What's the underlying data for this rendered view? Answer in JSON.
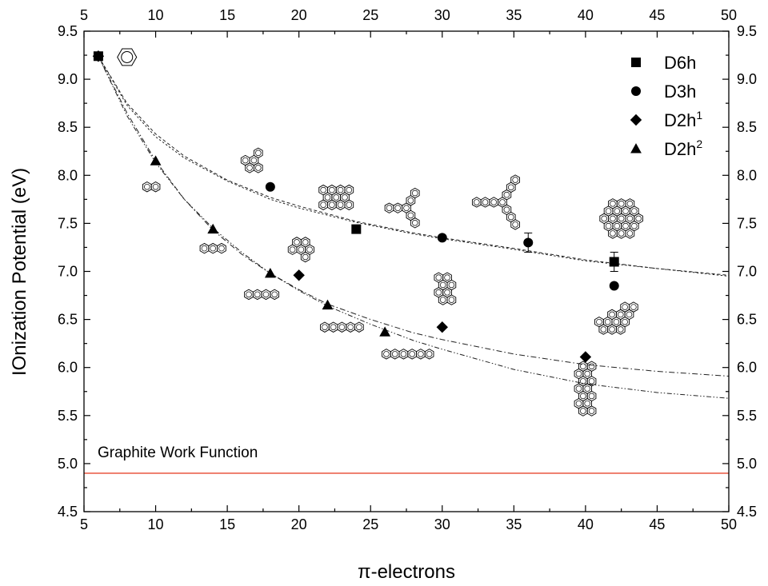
{
  "chart_data": {
    "type": "scatter",
    "xlabel": "π-electrons",
    "ylabel": "IOnization Potential (eV)",
    "xlim": [
      5,
      50
    ],
    "ylim": [
      4.5,
      9.5
    ],
    "x_ticks": [
      "5",
      "10",
      "15",
      "20",
      "25",
      "30",
      "35",
      "40",
      "45",
      "50"
    ],
    "y_ticks": [
      "4.5",
      "5.0",
      "5.5",
      "6.0",
      "6.5",
      "7.0",
      "7.5",
      "8.0",
      "8.5",
      "9.0",
      "9.5"
    ],
    "top_axis_ticks": [
      "5",
      "10",
      "15",
      "20",
      "25",
      "30",
      "35",
      "40",
      "45",
      "50"
    ],
    "right_axis_ticks": [
      "4.5",
      "5.0",
      "5.5",
      "6.0",
      "6.5",
      "7.0",
      "7.5",
      "8.0",
      "8.5",
      "9.0",
      "9.5"
    ],
    "legend_position": "top-right",
    "grid": false,
    "series": [
      {
        "name": "D6h",
        "marker": "square",
        "x": [
          6,
          24,
          42
        ],
        "y": [
          9.24,
          7.44,
          7.1
        ],
        "yerr": [
          0,
          0,
          0.1
        ]
      },
      {
        "name": "D3h",
        "marker": "circle",
        "x": [
          18,
          30,
          36,
          42
        ],
        "y": [
          7.88,
          7.35,
          7.3,
          6.85
        ],
        "yerr": [
          0,
          0,
          0.1,
          0
        ]
      },
      {
        "name": "D2h",
        "name_sup": "1",
        "marker": "diamond",
        "x": [
          6,
          20,
          30,
          40
        ],
        "y": [
          9.24,
          6.96,
          6.42,
          6.11
        ]
      },
      {
        "name": "D2h",
        "name_sup": "2",
        "marker": "triangle",
        "x": [
          10,
          14,
          18,
          22,
          26
        ],
        "y": [
          8.15,
          7.44,
          6.98,
          6.65,
          6.37
        ]
      }
    ],
    "fit_curves": [
      {
        "style": "dashed",
        "x": [
          6,
          8,
          10,
          12,
          15,
          18,
          20,
          24,
          28,
          30,
          35,
          40,
          45,
          50
        ],
        "y": [
          9.24,
          8.75,
          8.43,
          8.2,
          7.95,
          7.77,
          7.68,
          7.52,
          7.4,
          7.35,
          7.24,
          7.12,
          7.03,
          6.96
        ]
      },
      {
        "style": "short-dashed",
        "x": [
          6,
          8,
          10,
          12,
          15,
          18,
          20,
          24,
          28,
          30,
          35,
          40,
          45,
          50
        ],
        "y": [
          9.24,
          8.73,
          8.4,
          8.18,
          7.94,
          7.75,
          7.66,
          7.51,
          7.39,
          7.34,
          7.23,
          7.11,
          7.03,
          6.95
        ]
      },
      {
        "style": "dash-dot",
        "x": [
          6,
          8,
          10,
          12,
          14,
          16,
          18,
          20,
          22,
          25,
          28,
          30,
          35,
          40,
          45,
          50
        ],
        "y": [
          9.24,
          8.65,
          8.15,
          7.75,
          7.43,
          7.18,
          6.98,
          6.81,
          6.66,
          6.5,
          6.36,
          6.29,
          6.14,
          6.03,
          5.96,
          5.91
        ]
      },
      {
        "style": "dash-dot-dot",
        "x": [
          6,
          8,
          10,
          12,
          14,
          16,
          18,
          20,
          22,
          25,
          28,
          30,
          35,
          40,
          45,
          50
        ],
        "y": [
          9.24,
          8.62,
          8.13,
          7.75,
          7.45,
          7.2,
          6.98,
          6.8,
          6.64,
          6.45,
          6.28,
          6.19,
          5.98,
          5.83,
          5.74,
          5.68
        ]
      }
    ],
    "reference_line": {
      "label": "Graphite Work Function",
      "y": 4.9,
      "color": "#e8472f"
    },
    "molecule_insets": [
      {
        "shape": "benzene",
        "x": 8.0,
        "y": 9.23
      },
      {
        "shape": "naphthalene",
        "x": 9.7,
        "y": 7.88
      },
      {
        "shape": "triphenylene",
        "x": 16.8,
        "y": 8.14
      },
      {
        "shape": "anthracene",
        "x": 14.0,
        "y": 7.24
      },
      {
        "shape": "pyrene-stack",
        "x": 20.2,
        "y": 7.24
      },
      {
        "shape": "tetracene",
        "x": 17.4,
        "y": 6.76
      },
      {
        "shape": "coronene-like",
        "x": 22.6,
        "y": 7.77
      },
      {
        "shape": "pentacene",
        "x": 23.0,
        "y": 6.42
      },
      {
        "shape": "star-y-small",
        "x": 27.5,
        "y": 7.66
      },
      {
        "shape": "hexacene",
        "x": 27.6,
        "y": 6.14
      },
      {
        "shape": "vertical-stack-3",
        "x": 30.2,
        "y": 6.82
      },
      {
        "shape": "star-y-large",
        "x": 34.2,
        "y": 7.72
      },
      {
        "shape": "circumcoronene",
        "x": 42.5,
        "y": 7.55
      },
      {
        "shape": "propeller",
        "x": 42.2,
        "y": 6.5
      },
      {
        "shape": "vertical-stack-long",
        "x": 40.0,
        "y": 5.78
      }
    ]
  }
}
